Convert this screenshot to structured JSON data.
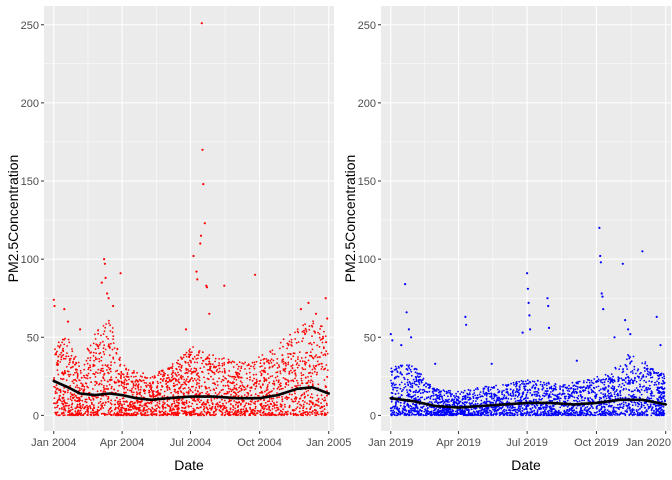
{
  "figure": {
    "background": "#ffffff",
    "panel_background": "#ebebeb",
    "grid_color": "#ffffff",
    "tick_color": "#333333"
  },
  "chart_data": [
    {
      "type": "scatter",
      "title": "",
      "xlabel": "Date",
      "ylabel": "PM2.5Concentration",
      "ylim": [
        -10,
        262
      ],
      "y_ticks": [
        0,
        50,
        100,
        150,
        200,
        250
      ],
      "x_range": [
        "2003-12-19",
        "2005-01-08"
      ],
      "x_ticks": [
        {
          "date": "2004-01-01",
          "label": "Jan 2004"
        },
        {
          "date": "2004-04-01",
          "label": "Apr 2004"
        },
        {
          "date": "2004-07-01",
          "label": "Jul 2004"
        },
        {
          "date": "2004-10-01",
          "label": "Oct 2004"
        },
        {
          "date": "2005-01-01",
          "label": "Jan 2005"
        }
      ],
      "grid": true,
      "point_color": "#ff0000",
      "smooth_color": "#000000",
      "bulk": [
        {
          "date": "2004-01-01",
          "low": 0,
          "high": 47
        },
        {
          "date": "2004-01-20",
          "low": 0,
          "high": 50
        },
        {
          "date": "2004-02-05",
          "low": 0,
          "high": 32
        },
        {
          "date": "2004-02-25",
          "low": 0,
          "high": 55
        },
        {
          "date": "2004-03-15",
          "low": 0,
          "high": 65
        },
        {
          "date": "2004-04-01",
          "low": 0,
          "high": 33
        },
        {
          "date": "2004-04-20",
          "low": 0,
          "high": 28
        },
        {
          "date": "2004-05-10",
          "low": 0,
          "high": 26
        },
        {
          "date": "2004-05-30",
          "low": 0,
          "high": 30
        },
        {
          "date": "2004-06-15",
          "low": 0,
          "high": 36
        },
        {
          "date": "2004-07-01",
          "low": 0,
          "high": 45
        },
        {
          "date": "2004-07-20",
          "low": 0,
          "high": 40
        },
        {
          "date": "2004-08-10",
          "low": 0,
          "high": 38
        },
        {
          "date": "2004-08-30",
          "low": 0,
          "high": 34
        },
        {
          "date": "2004-09-20",
          "low": 0,
          "high": 35
        },
        {
          "date": "2004-10-10",
          "low": 0,
          "high": 40
        },
        {
          "date": "2004-10-30",
          "low": 0,
          "high": 48
        },
        {
          "date": "2004-11-20",
          "low": 0,
          "high": 55
        },
        {
          "date": "2004-12-10",
          "low": 0,
          "high": 62
        },
        {
          "date": "2004-12-31",
          "low": 0,
          "high": 55
        }
      ],
      "points": [
        {
          "date": "2004-01-01",
          "y": 74
        },
        {
          "date": "2004-01-02",
          "y": 70
        },
        {
          "date": "2004-01-15",
          "y": 68
        },
        {
          "date": "2004-01-20",
          "y": 60
        },
        {
          "date": "2004-02-05",
          "y": 55
        },
        {
          "date": "2004-03-05",
          "y": 85
        },
        {
          "date": "2004-03-08",
          "y": 100
        },
        {
          "date": "2004-03-09",
          "y": 97
        },
        {
          "date": "2004-03-10",
          "y": 88
        },
        {
          "date": "2004-03-12",
          "y": 78
        },
        {
          "date": "2004-03-14",
          "y": 75
        },
        {
          "date": "2004-03-20",
          "y": 70
        },
        {
          "date": "2004-03-30",
          "y": 91
        },
        {
          "date": "2004-07-05",
          "y": 102
        },
        {
          "date": "2004-07-09",
          "y": 92
        },
        {
          "date": "2004-07-10",
          "y": 87
        },
        {
          "date": "2004-07-14",
          "y": 110
        },
        {
          "date": "2004-07-15",
          "y": 115
        },
        {
          "date": "2004-07-16",
          "y": 251
        },
        {
          "date": "2004-07-17",
          "y": 170
        },
        {
          "date": "2004-07-18",
          "y": 148
        },
        {
          "date": "2004-07-20",
          "y": 123
        },
        {
          "date": "2004-07-22",
          "y": 83
        },
        {
          "date": "2004-07-23",
          "y": 82
        },
        {
          "date": "2004-07-26",
          "y": 65
        },
        {
          "date": "2004-08-15",
          "y": 83
        },
        {
          "date": "2004-09-25",
          "y": 90
        },
        {
          "date": "2004-06-25",
          "y": 55
        },
        {
          "date": "2004-11-25",
          "y": 68
        },
        {
          "date": "2004-12-05",
          "y": 72
        },
        {
          "date": "2004-12-15",
          "y": 65
        },
        {
          "date": "2004-12-28",
          "y": 75
        },
        {
          "date": "2004-12-30",
          "y": 62
        }
      ],
      "smooth": [
        {
          "date": "2004-01-01",
          "y": 22
        },
        {
          "date": "2004-01-20",
          "y": 18
        },
        {
          "date": "2004-02-05",
          "y": 14
        },
        {
          "date": "2004-02-25",
          "y": 13
        },
        {
          "date": "2004-03-15",
          "y": 14
        },
        {
          "date": "2004-04-01",
          "y": 13
        },
        {
          "date": "2004-04-20",
          "y": 11
        },
        {
          "date": "2004-05-10",
          "y": 10
        },
        {
          "date": "2004-06-01",
          "y": 11
        },
        {
          "date": "2004-07-01",
          "y": 12
        },
        {
          "date": "2004-08-01",
          "y": 12
        },
        {
          "date": "2004-09-01",
          "y": 11
        },
        {
          "date": "2004-10-01",
          "y": 11
        },
        {
          "date": "2004-10-25",
          "y": 13
        },
        {
          "date": "2004-11-20",
          "y": 17
        },
        {
          "date": "2004-12-10",
          "y": 18
        },
        {
          "date": "2005-01-01",
          "y": 14
        }
      ]
    },
    {
      "type": "scatter",
      "title": "",
      "xlabel": "Date",
      "ylabel": "PM2.5Concentration",
      "ylim": [
        -10,
        262
      ],
      "y_ticks": [
        0,
        50,
        100,
        150,
        200,
        250
      ],
      "x_range": [
        "2018-12-19",
        "2020-01-08"
      ],
      "x_ticks": [
        {
          "date": "2019-01-01",
          "label": "Jan 2019"
        },
        {
          "date": "2019-04-01",
          "label": "Apr 2019"
        },
        {
          "date": "2019-07-01",
          "label": "Jul 2019"
        },
        {
          "date": "2019-10-01",
          "label": "Oct 2019"
        },
        {
          "date": "2020-01-01",
          "label": "Jan 2020"
        }
      ],
      "grid": true,
      "point_color": "#0000ff",
      "smooth_color": "#000000",
      "bulk": [
        {
          "date": "2019-01-01",
          "low": 0,
          "high": 30
        },
        {
          "date": "2019-01-20",
          "low": 0,
          "high": 34
        },
        {
          "date": "2019-02-05",
          "low": 0,
          "high": 30
        },
        {
          "date": "2019-02-25",
          "low": 0,
          "high": 18
        },
        {
          "date": "2019-03-15",
          "low": 0,
          "high": 16
        },
        {
          "date": "2019-04-01",
          "low": 0,
          "high": 16
        },
        {
          "date": "2019-04-20",
          "low": 0,
          "high": 17
        },
        {
          "date": "2019-05-10",
          "low": 0,
          "high": 19
        },
        {
          "date": "2019-05-30",
          "low": 0,
          "high": 20
        },
        {
          "date": "2019-06-20",
          "low": 0,
          "high": 22
        },
        {
          "date": "2019-07-10",
          "low": 0,
          "high": 23
        },
        {
          "date": "2019-07-30",
          "low": 0,
          "high": 21
        },
        {
          "date": "2019-08-20",
          "low": 0,
          "high": 20
        },
        {
          "date": "2019-09-10",
          "low": 0,
          "high": 22
        },
        {
          "date": "2019-10-01",
          "low": 0,
          "high": 25
        },
        {
          "date": "2019-10-20",
          "low": 0,
          "high": 28
        },
        {
          "date": "2019-11-10",
          "low": 0,
          "high": 40
        },
        {
          "date": "2019-11-30",
          "low": 0,
          "high": 36
        },
        {
          "date": "2019-12-20",
          "low": 0,
          "high": 30
        },
        {
          "date": "2019-12-31",
          "low": 0,
          "high": 26
        }
      ],
      "points": [
        {
          "date": "2019-01-01",
          "y": 52
        },
        {
          "date": "2019-01-03",
          "y": 48
        },
        {
          "date": "2019-01-15",
          "y": 45
        },
        {
          "date": "2019-01-20",
          "y": 84
        },
        {
          "date": "2019-01-22",
          "y": 66
        },
        {
          "date": "2019-01-25",
          "y": 55
        },
        {
          "date": "2019-01-28",
          "y": 50
        },
        {
          "date": "2019-03-01",
          "y": 33
        },
        {
          "date": "2019-04-10",
          "y": 63
        },
        {
          "date": "2019-04-11",
          "y": 58
        },
        {
          "date": "2019-05-15",
          "y": 33
        },
        {
          "date": "2019-06-25",
          "y": 53
        },
        {
          "date": "2019-07-01",
          "y": 91
        },
        {
          "date": "2019-07-02",
          "y": 81
        },
        {
          "date": "2019-07-03",
          "y": 72
        },
        {
          "date": "2019-07-04",
          "y": 64
        },
        {
          "date": "2019-07-05",
          "y": 55
        },
        {
          "date": "2019-07-28",
          "y": 75
        },
        {
          "date": "2019-07-29",
          "y": 70
        },
        {
          "date": "2019-07-30",
          "y": 56
        },
        {
          "date": "2019-09-05",
          "y": 35
        },
        {
          "date": "2019-10-05",
          "y": 120
        },
        {
          "date": "2019-10-06",
          "y": 102
        },
        {
          "date": "2019-10-07",
          "y": 98
        },
        {
          "date": "2019-10-08",
          "y": 78
        },
        {
          "date": "2019-10-09",
          "y": 76
        },
        {
          "date": "2019-10-10",
          "y": 68
        },
        {
          "date": "2019-10-25",
          "y": 50
        },
        {
          "date": "2019-11-05",
          "y": 97
        },
        {
          "date": "2019-11-08",
          "y": 61
        },
        {
          "date": "2019-11-12",
          "y": 55
        },
        {
          "date": "2019-11-15",
          "y": 52
        },
        {
          "date": "2019-12-01",
          "y": 105
        },
        {
          "date": "2019-12-20",
          "y": 63
        },
        {
          "date": "2019-12-25",
          "y": 45
        }
      ],
      "smooth": [
        {
          "date": "2019-01-01",
          "y": 11
        },
        {
          "date": "2019-02-01",
          "y": 9
        },
        {
          "date": "2019-03-01",
          "y": 6
        },
        {
          "date": "2019-04-01",
          "y": 5
        },
        {
          "date": "2019-05-01",
          "y": 6
        },
        {
          "date": "2019-06-01",
          "y": 7
        },
        {
          "date": "2019-07-01",
          "y": 8
        },
        {
          "date": "2019-08-01",
          "y": 8
        },
        {
          "date": "2019-09-01",
          "y": 7
        },
        {
          "date": "2019-10-01",
          "y": 8
        },
        {
          "date": "2019-11-01",
          "y": 10
        },
        {
          "date": "2019-12-01",
          "y": 10
        },
        {
          "date": "2020-01-01",
          "y": 7
        }
      ]
    }
  ]
}
